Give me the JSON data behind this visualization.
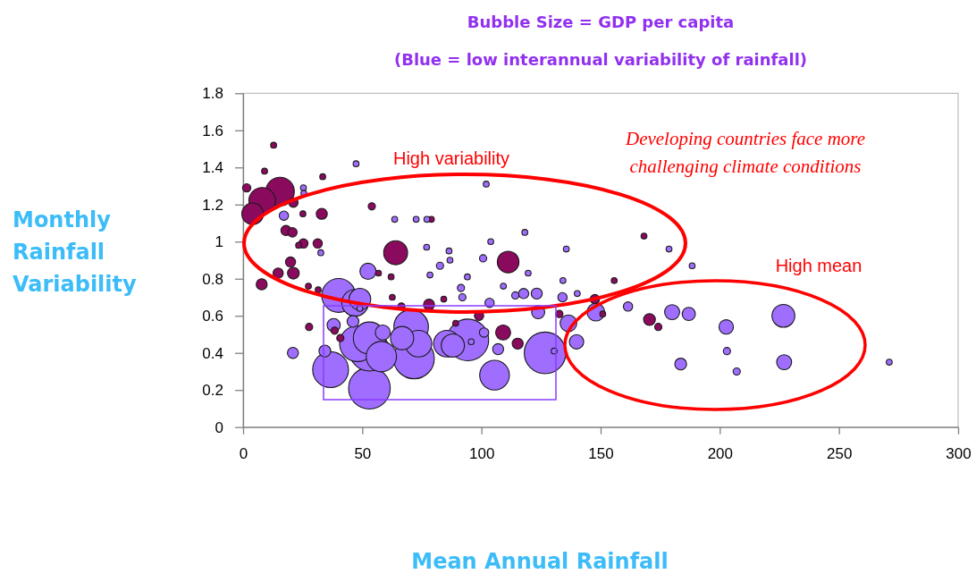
{
  "chart_data": {
    "type": "bubble",
    "title": "Bubble Size = GDP per capita",
    "subtitle": "(Blue = low interannual variability of rainfall)",
    "xlabel": "Mean Annual Rainfall",
    "ylabel": "Monthly Rainfall Variability",
    "annotations": [
      "High variability",
      "Developing countries face more\nchallenging climate conditions",
      "High mean"
    ],
    "xlim": [
      0,
      300
    ],
    "xticks": [
      0,
      50,
      100,
      150,
      200,
      250,
      300
    ],
    "ylim": [
      0,
      1.8
    ],
    "yticks": [
      0,
      0.2,
      0.4,
      0.6,
      0.8,
      1,
      1.2,
      1.4,
      1.6,
      1.8
    ],
    "series": [
      {
        "color": "#8a0a5e",
        "x": [
          12.8,
          9.0,
          33.4,
          1.5,
          15.5,
          8.0,
          4.0,
          21.1,
          25.1,
          33.0,
          54.0,
          79.0,
          18.0,
          20.7,
          25.3,
          23.3,
          31.3,
          64.0,
          19.9,
          14.7,
          21.1,
          56.8,
          62.1,
          7.8,
          27.4,
          31.5,
          62.6,
          84.2,
          78.0,
          66.4,
          27.7,
          38.4,
          40.8,
          89.2,
          99.0,
          111.2,
          168.2,
          155.7,
          147.6,
          150.9,
          170.5,
          174.2,
          132.7,
          109.1,
          115.2
        ],
        "values": [
          1.52,
          1.38,
          1.35,
          1.29,
          1.27,
          1.22,
          1.15,
          1.21,
          1.15,
          1.15,
          1.19,
          1.12,
          1.06,
          1.05,
          0.99,
          0.98,
          0.99,
          0.94,
          0.89,
          0.83,
          0.83,
          0.83,
          0.81,
          0.77,
          0.76,
          0.74,
          0.7,
          0.69,
          0.66,
          0.65,
          0.54,
          0.52,
          0.48,
          0.56,
          0.6,
          0.89,
          1.03,
          0.79,
          0.69,
          0.61,
          0.58,
          0.54,
          0.61,
          0.51,
          0.45
        ],
        "sizes": [
          0.02,
          0.02,
          0.02,
          0.04,
          0.47,
          0.41,
          0.27,
          0.05,
          0.02,
          0.07,
          0.03,
          0.02,
          0.06,
          0.05,
          0.05,
          0.02,
          0.05,
          0.33,
          0.06,
          0.06,
          0.08,
          0.02,
          0.02,
          0.07,
          0.02,
          0.02,
          0.02,
          0.02,
          0.07,
          0.03,
          0.03,
          0.03,
          0.03,
          0.02,
          0.05,
          0.27,
          0.02,
          0.02,
          0.05,
          0.02,
          0.08,
          0.03,
          0.03,
          0.13,
          0.07
        ]
      },
      {
        "color": "#a06eff",
        "x": [
          47.4,
          25.3,
          25.5,
          17.1,
          63.6,
          72.6,
          77.1,
          77.0,
          86.4,
          86.8,
          82.6,
          32.6,
          52.4,
          78.4,
          94.1,
          100.7,
          91.4,
          92.0,
          102.0,
          118.2,
          103.9,
          135.6,
          178.7,
          188.4,
          119.6,
          109.2,
          134.2,
          140.2,
          114.2,
          117.7,
          123.2,
          134.0,
          103.4,
          148.0,
          161.5,
          180.0,
          187.0,
          136.5,
          123.8,
          101.1,
          139.9,
          126.7,
          130.5,
          105.5,
          107.0,
          95.7,
          183.6,
          226.7,
          202.7,
          203.0,
          207.1,
          227.0,
          271.1,
          40.1,
          47.0,
          49.0,
          49.0,
          38.0,
          46.1,
          20.9,
          34.3,
          36.7,
          53.0,
          53.0,
          48.0,
          53.0,
          58.6,
          58.0,
          71.7,
          70.5,
          66.7,
          73.6,
          85.5,
          88.0,
          94.3
        ],
        "values": [
          1.42,
          1.29,
          1.26,
          1.14,
          1.12,
          1.12,
          1.12,
          0.97,
          0.95,
          0.9,
          0.87,
          0.94,
          0.84,
          0.82,
          0.81,
          0.91,
          0.75,
          0.7,
          1.31,
          1.05,
          1.0,
          0.96,
          0.96,
          0.87,
          0.83,
          0.76,
          0.79,
          0.72,
          0.71,
          0.72,
          0.72,
          0.7,
          0.67,
          0.62,
          0.65,
          0.62,
          0.61,
          0.56,
          0.62,
          0.51,
          0.46,
          0.4,
          0.41,
          0.28,
          0.42,
          0.46,
          0.34,
          0.6,
          0.54,
          0.41,
          0.3,
          0.35,
          0.35,
          0.71,
          0.67,
          0.69,
          0.64,
          0.55,
          0.57,
          0.4,
          0.41,
          0.31,
          0.21,
          0.41,
          0.45,
          0.48,
          0.51,
          0.38,
          0.37,
          0.54,
          0.48,
          0.45,
          0.45,
          0.44,
          0.47
        ],
        "sizes": [
          0.02,
          0.02,
          0.02,
          0.05,
          0.02,
          0.02,
          0.02,
          0.02,
          0.02,
          0.02,
          0.03,
          0.02,
          0.15,
          0.02,
          0.02,
          0.03,
          0.03,
          0.03,
          0.02,
          0.02,
          0.02,
          0.02,
          0.02,
          0.02,
          0.02,
          0.02,
          0.02,
          0.02,
          0.03,
          0.06,
          0.07,
          0.05,
          0.05,
          0.18,
          0.05,
          0.13,
          0.1,
          0.16,
          0.1,
          0.05,
          0.12,
          1,
          0.02,
          0.51,
          0.07,
          0.02,
          0.08,
          0.3,
          0.12,
          0.03,
          0.03,
          0.13,
          0.02,
          0.66,
          0.41,
          0.27,
          0.02,
          0.1,
          0.08,
          0.07,
          0.08,
          0.74,
          1,
          0.92,
          0.74,
          0.6,
          0.13,
          0.53,
          0.95,
          0.69,
          0.31,
          0.41,
          0.41,
          0.31,
          1
        ]
      }
    ]
  }
}
